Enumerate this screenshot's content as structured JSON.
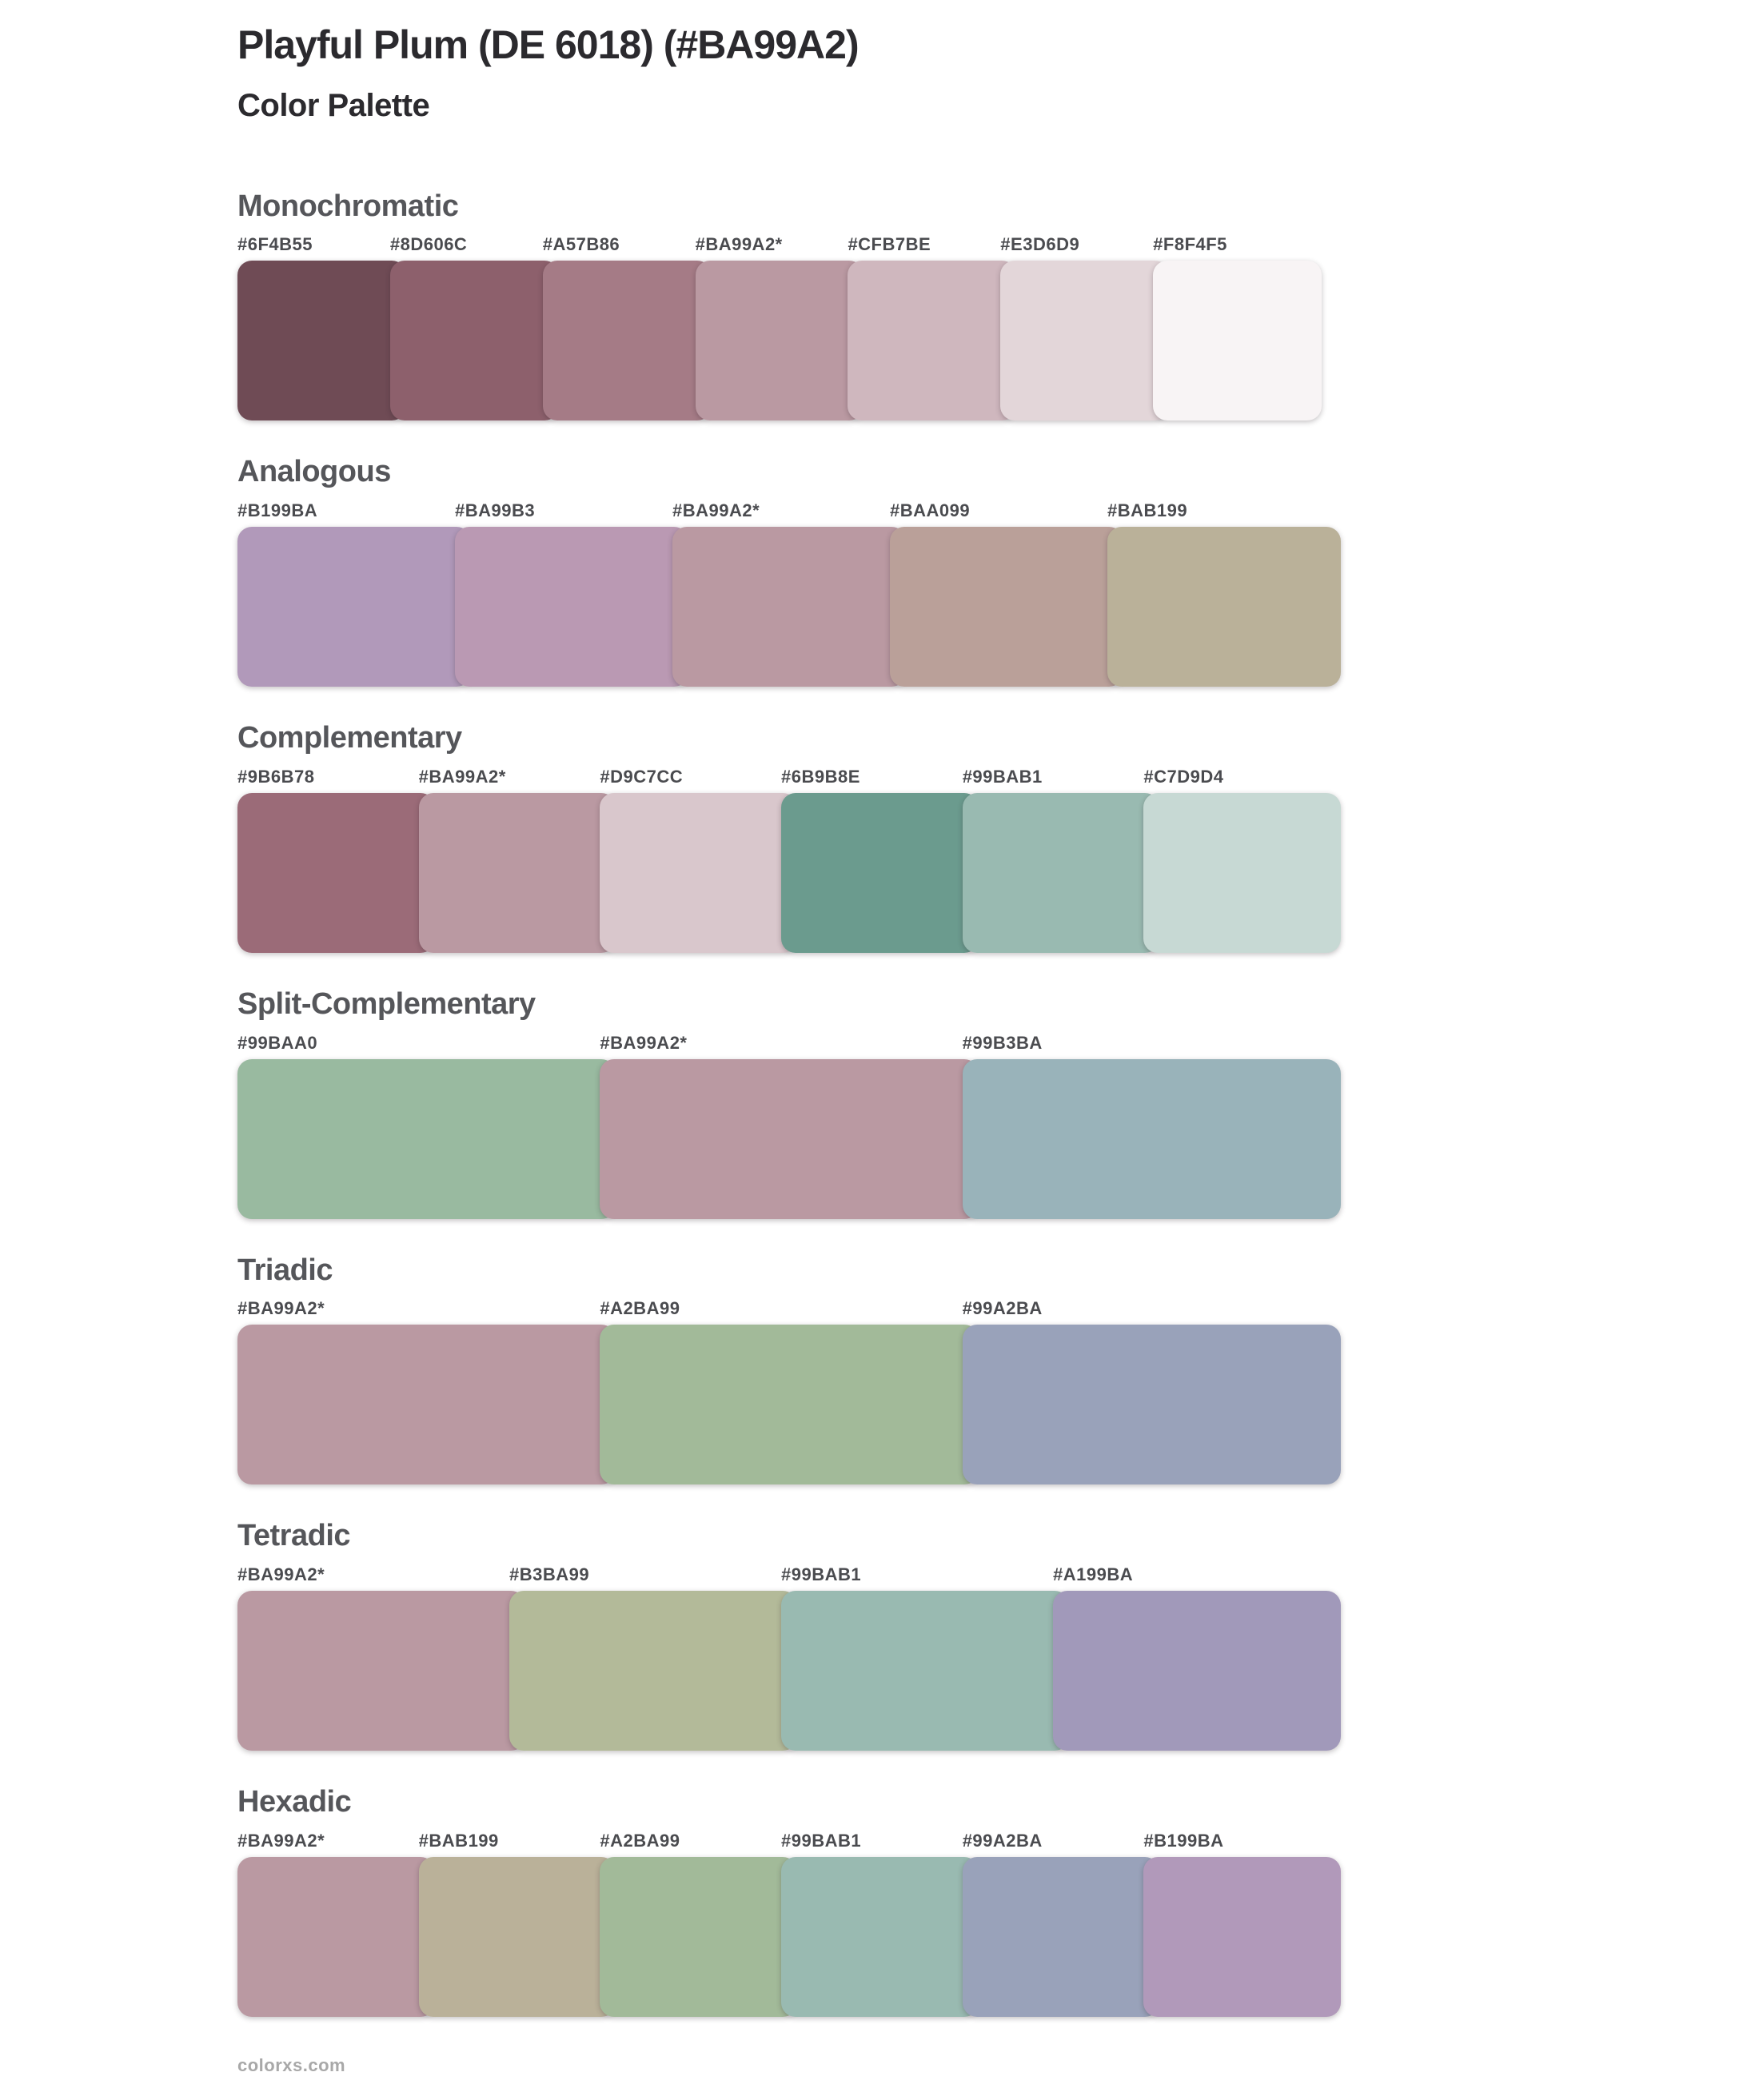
{
  "page": {
    "title": "Playful Plum (DE 6018) (#BA99A2)",
    "subtitle": "Color Palette",
    "footer": "colorxs.com",
    "base_color": "#BA99A2"
  },
  "sections": [
    {
      "name": "Monochromatic",
      "swatches": [
        {
          "label": "#6F4B55",
          "color": "#6F4B55"
        },
        {
          "label": "#8D606C",
          "color": "#8D606C"
        },
        {
          "label": "#A57B86",
          "color": "#A57B86"
        },
        {
          "label": "#BA99A2*",
          "color": "#BA99A2"
        },
        {
          "label": "#CFB7BE",
          "color": "#CFB7BE"
        },
        {
          "label": "#E3D6D9",
          "color": "#E3D6D9"
        },
        {
          "label": "#F8F4F5",
          "color": "#F8F4F5"
        }
      ]
    },
    {
      "name": "Analogous",
      "swatches": [
        {
          "label": "#B199BA",
          "color": "#B199BA"
        },
        {
          "label": "#BA99B3",
          "color": "#BA99B3"
        },
        {
          "label": "#BA99A2*",
          "color": "#BA99A2"
        },
        {
          "label": "#BAA099",
          "color": "#BAA099"
        },
        {
          "label": "#BAB199",
          "color": "#BAB199"
        }
      ]
    },
    {
      "name": "Complementary",
      "swatches": [
        {
          "label": "#9B6B78",
          "color": "#9B6B78"
        },
        {
          "label": "#BA99A2*",
          "color": "#BA99A2"
        },
        {
          "label": "#D9C7CC",
          "color": "#D9C7CC"
        },
        {
          "label": "#6B9B8E",
          "color": "#6B9B8E"
        },
        {
          "label": "#99BAB1",
          "color": "#99BAB1"
        },
        {
          "label": "#C7D9D4",
          "color": "#C7D9D4"
        }
      ]
    },
    {
      "name": "Split-Complementary",
      "swatches": [
        {
          "label": "#99BAA0",
          "color": "#99BAA0"
        },
        {
          "label": "#BA99A2*",
          "color": "#BA99A2"
        },
        {
          "label": "#99B3BA",
          "color": "#99B3BA"
        }
      ]
    },
    {
      "name": "Triadic",
      "swatches": [
        {
          "label": "#BA99A2*",
          "color": "#BA99A2"
        },
        {
          "label": "#A2BA99",
          "color": "#A2BA99"
        },
        {
          "label": "#99A2BA",
          "color": "#99A2BA"
        }
      ]
    },
    {
      "name": "Tetradic",
      "swatches": [
        {
          "label": "#BA99A2*",
          "color": "#BA99A2"
        },
        {
          "label": "#B3BA99",
          "color": "#B3BA99"
        },
        {
          "label": "#99BAB1",
          "color": "#99BAB1"
        },
        {
          "label": "#A199BA",
          "color": "#A199BA"
        }
      ]
    },
    {
      "name": "Hexadic",
      "swatches": [
        {
          "label": "#BA99A2*",
          "color": "#BA99A2"
        },
        {
          "label": "#BAB199",
          "color": "#BAB199"
        },
        {
          "label": "#A2BA99",
          "color": "#A2BA99"
        },
        {
          "label": "#99BAB1",
          "color": "#99BAB1"
        },
        {
          "label": "#99A2BA",
          "color": "#99A2BA"
        },
        {
          "label": "#B199BA",
          "color": "#B199BA"
        }
      ]
    }
  ]
}
